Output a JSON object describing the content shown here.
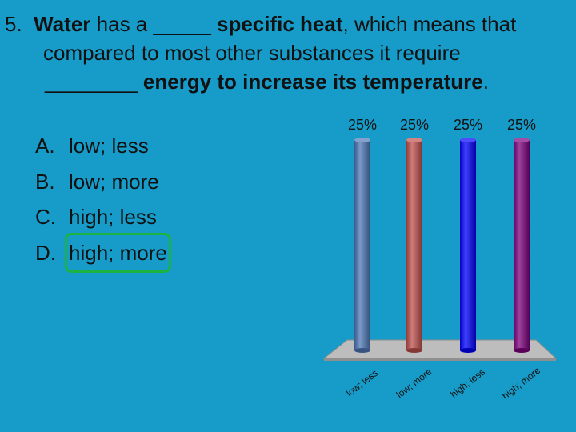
{
  "question": {
    "number": "5.",
    "line1": [
      {
        "t": "Water",
        "b": true
      },
      {
        "t": " has a _____ ",
        "b": false
      },
      {
        "t": "specific heat",
        "b": true
      },
      {
        "t": ", which means that",
        "b": false
      }
    ],
    "line2": [
      {
        "t": "compared to most other substances it require",
        "b": false
      }
    ],
    "line3": [
      {
        "t": "________ ",
        "b": false
      },
      {
        "t": "energy to increase its temperature",
        "b": true
      },
      {
        "t": ".",
        "b": false
      }
    ]
  },
  "answers": [
    {
      "letter": "A.",
      "text": "low; less",
      "correct": false
    },
    {
      "letter": "B.",
      "text": "low; more",
      "correct": false
    },
    {
      "letter": "C.",
      "text": "high; less",
      "correct": false
    },
    {
      "letter": "D.",
      "text": "high; more",
      "correct": true
    }
  ],
  "chart_data": {
    "type": "bar",
    "categories": [
      "low; less",
      "low; more",
      "high; less",
      "high; more"
    ],
    "values": [
      25,
      25,
      25,
      25
    ],
    "value_labels": [
      "25%",
      "25%",
      "25%",
      "25%"
    ],
    "colors": [
      "#4f78b8",
      "#c0504d",
      "#0000ff",
      "#7f007f"
    ],
    "ylim": [
      0,
      25
    ],
    "grid": false,
    "style": "3d"
  }
}
